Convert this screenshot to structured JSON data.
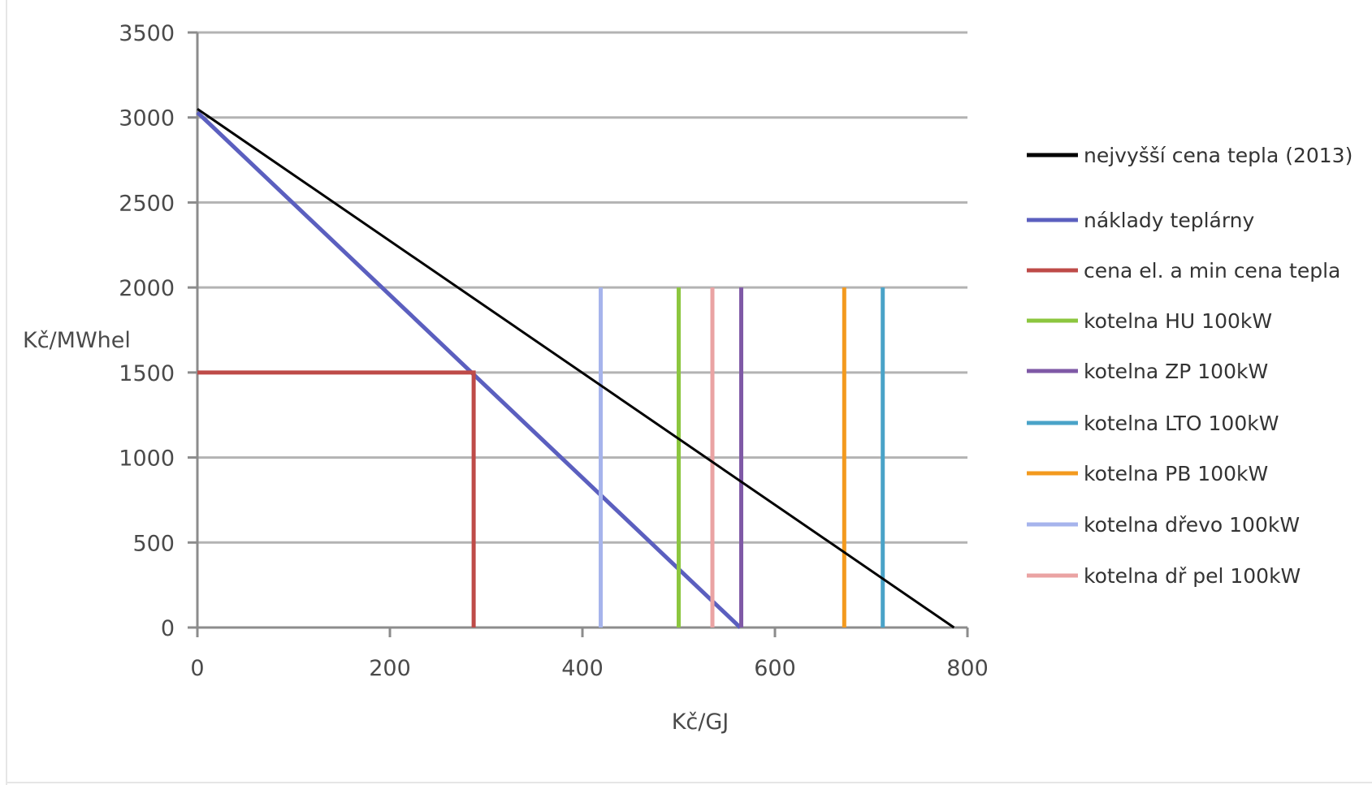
{
  "chart_data": {
    "type": "line",
    "title": "",
    "xlabel": "Kč/GJ",
    "ylabel": "Kč/MWhel",
    "xlim": [
      0,
      800
    ],
    "ylim": [
      0,
      3500
    ],
    "x_ticks": [
      0,
      200,
      400,
      600,
      800
    ],
    "y_ticks": [
      0,
      500,
      1000,
      1500,
      2000,
      2500,
      3000,
      3500
    ],
    "grid": true,
    "legend_position": "right",
    "series": [
      {
        "name": "nejvyšší cena tepla (2013)",
        "color": "#000000",
        "points": [
          [
            0,
            3050
          ],
          [
            786,
            0
          ]
        ]
      },
      {
        "name": "náklady teplárny",
        "color": "#5b5fbf",
        "points": [
          [
            0,
            3030
          ],
          [
            564,
            0
          ]
        ]
      },
      {
        "name": "cena el. a min cena tepla",
        "color": "#be4b48",
        "points": [
          [
            0,
            1500
          ],
          [
            287,
            1500
          ],
          [
            287,
            0
          ]
        ]
      },
      {
        "name": "kotelna HU 100kW",
        "color": "#8cc63f",
        "points": [
          [
            500,
            0
          ],
          [
            500,
            2000
          ]
        ]
      },
      {
        "name": "kotelna ZP 100kW",
        "color": "#7f59a6",
        "points": [
          [
            565,
            0
          ],
          [
            565,
            2000
          ]
        ]
      },
      {
        "name": "kotelna LTO 100kW",
        "color": "#4aa3c8",
        "points": [
          [
            712,
            0
          ],
          [
            712,
            2000
          ]
        ]
      },
      {
        "name": "kotelna PB 100kW",
        "color": "#f39a1e",
        "points": [
          [
            672,
            0
          ],
          [
            672,
            2000
          ]
        ]
      },
      {
        "name": "kotelna dřevo 100kW",
        "color": "#a6b4ec",
        "points": [
          [
            419,
            0
          ],
          [
            419,
            2000
          ]
        ]
      },
      {
        "name": "kotelna dř pel 100kW",
        "color": "#eaa3a3",
        "points": [
          [
            535,
            0
          ],
          [
            535,
            2000
          ]
        ]
      }
    ]
  }
}
